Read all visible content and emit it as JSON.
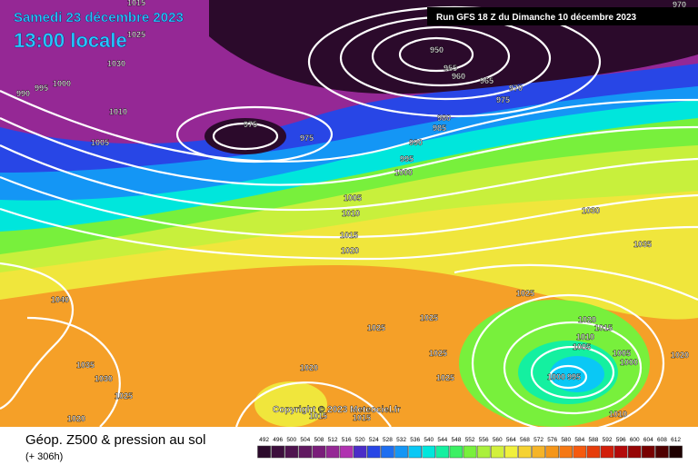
{
  "header": {
    "date": "Samedi 23 décembre 2023",
    "time": "13:00 locale",
    "run": "Run GFS 18 Z du Dimanche 10 décembre 2023"
  },
  "isobar_labels": [
    "1015",
    "1025",
    "1030",
    "1000",
    "995",
    "990",
    "1010",
    "1005",
    "975",
    "975",
    "950",
    "955",
    "960",
    "965",
    "970",
    "975",
    "980",
    "985",
    "990",
    "995",
    "1000",
    "1005",
    "1010",
    "1015",
    "1020",
    "970",
    "1030",
    "1035",
    "1040",
    "1025",
    "1025",
    "1025",
    "1020",
    "1015",
    "1010",
    "1005",
    "1005",
    "1000",
    "1020",
    "1025",
    "1025",
    "1035",
    "1030",
    "1025",
    "1020",
    "1000",
    "995",
    "1020",
    "1015",
    "1015",
    "1010"
  ],
  "copyright": "Copyright © 2023 Meteociel.fr",
  "footer": {
    "title": "Géop. Z500 & pression au sol",
    "lead": "(+ 306h)"
  },
  "scale": [
    {
      "value": 492,
      "color": "#2b0a2b"
    },
    {
      "value": 496,
      "color": "#3d0f3d"
    },
    {
      "value": 500,
      "color": "#4f144f"
    },
    {
      "value": 504,
      "color": "#611961"
    },
    {
      "value": 508,
      "color": "#7a1e7a"
    },
    {
      "value": 512,
      "color": "#952895"
    },
    {
      "value": 516,
      "color": "#b032b0"
    },
    {
      "value": 520,
      "color": "#4b2dc8"
    },
    {
      "value": 524,
      "color": "#2846e6"
    },
    {
      "value": 528,
      "color": "#1e6ef0"
    },
    {
      "value": 532,
      "color": "#1496f5"
    },
    {
      "value": 536,
      "color": "#0ac8f5"
    },
    {
      "value": 540,
      "color": "#00e6dc"
    },
    {
      "value": 544,
      "color": "#14f0a0"
    },
    {
      "value": 548,
      "color": "#3cf064"
    },
    {
      "value": 552,
      "color": "#78f03c"
    },
    {
      "value": 556,
      "color": "#aaf03c"
    },
    {
      "value": 560,
      "color": "#d2f03c"
    },
    {
      "value": 564,
      "color": "#f0f03c"
    },
    {
      "value": 568,
      "color": "#f5d232"
    },
    {
      "value": 572,
      "color": "#f5b428"
    },
    {
      "value": 576,
      "color": "#f59619"
    },
    {
      "value": 580,
      "color": "#f57814"
    },
    {
      "value": 584,
      "color": "#f55a0f"
    },
    {
      "value": 588,
      "color": "#e63c0a"
    },
    {
      "value": 592,
      "color": "#d21e0a"
    },
    {
      "value": 596,
      "color": "#b40a0a"
    },
    {
      "value": 600,
      "color": "#960505"
    },
    {
      "value": 604,
      "color": "#780000"
    },
    {
      "value": 608,
      "color": "#500000"
    },
    {
      "value": 612,
      "color": "#1e0000"
    }
  ]
}
